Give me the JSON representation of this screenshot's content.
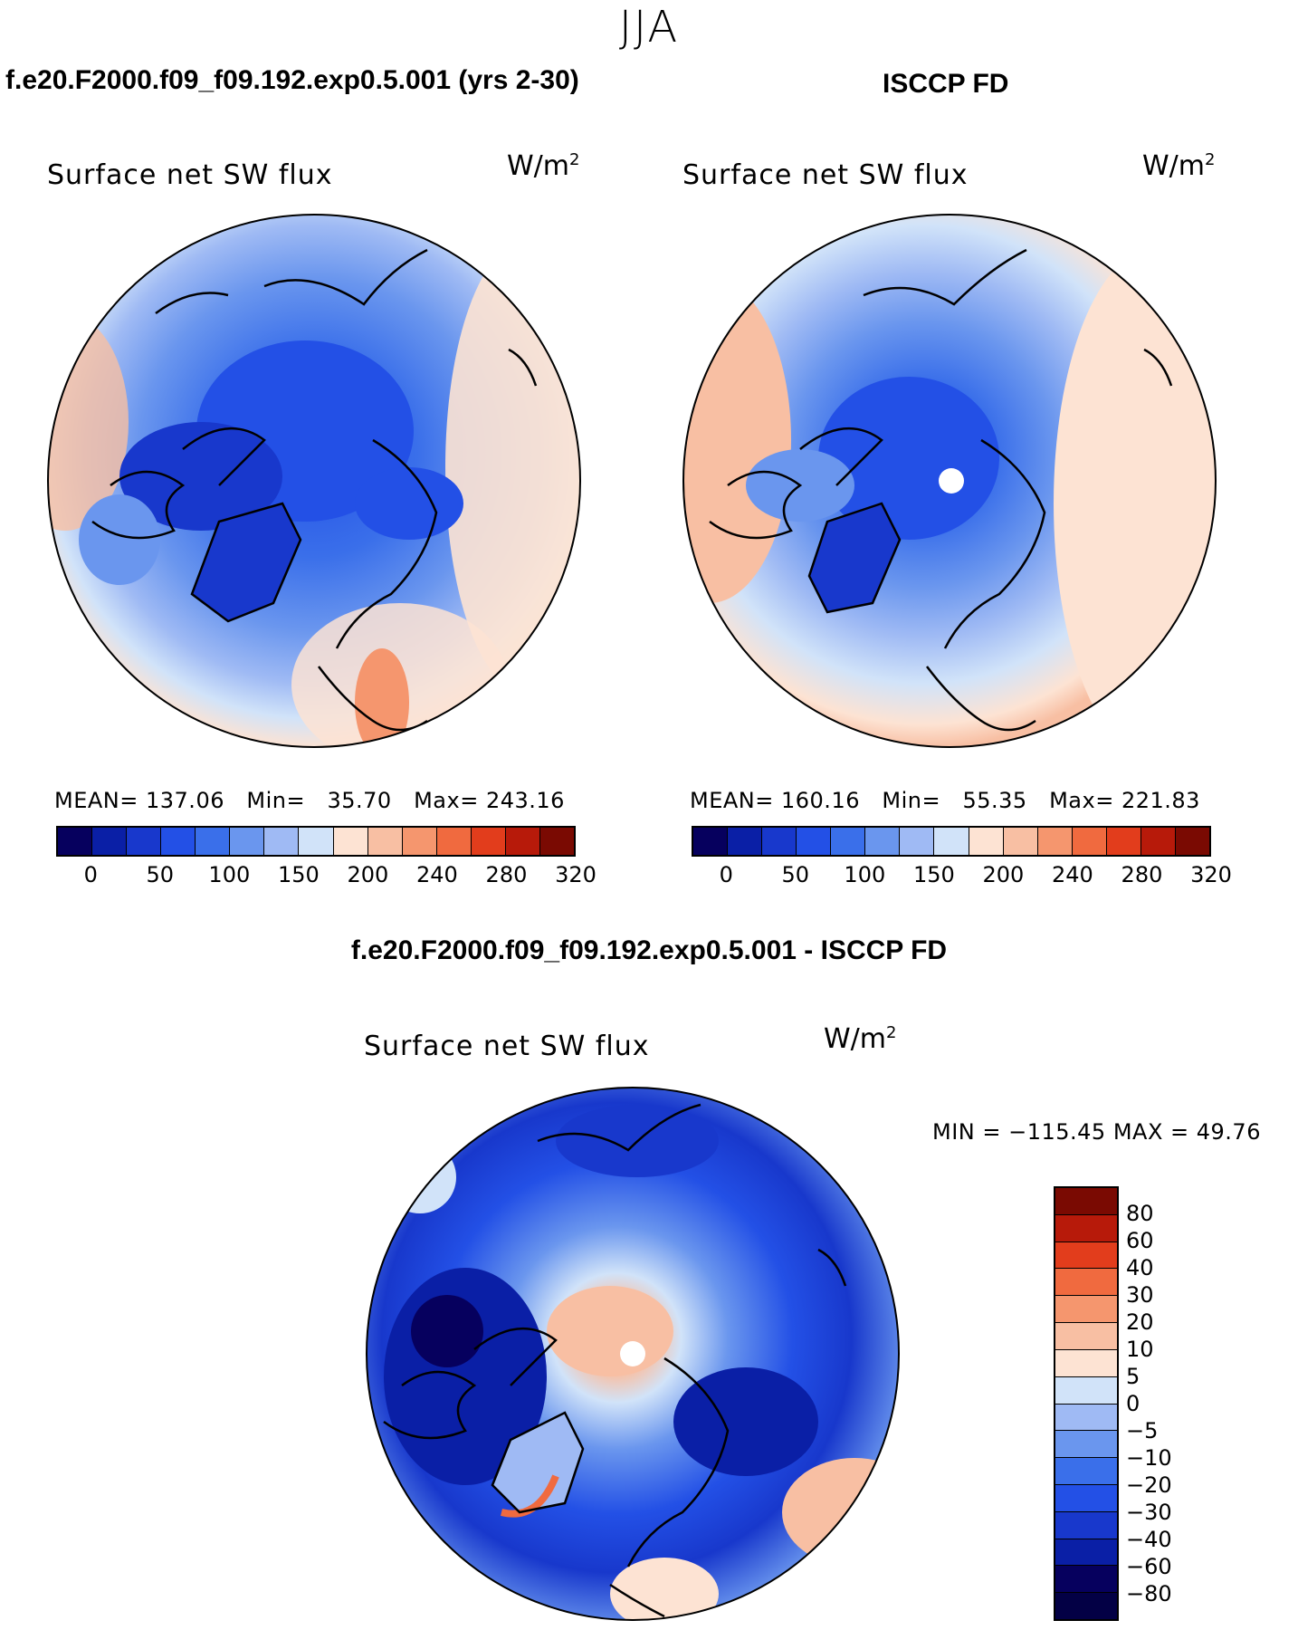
{
  "season": "JJA",
  "panels": [
    {
      "case_title": "f.e20.F2000.f09_f09.192.exp0.5.001 (yrs 2-30)",
      "field": "Surface net SW flux",
      "unit": "W/m",
      "unit_exp": "2",
      "mean_label": "MEAN=",
      "mean": "137.06",
      "min_label": "Min=",
      "min": "35.70",
      "max_label": "Max=",
      "max": "243.16"
    },
    {
      "case_title": "ISCCP FD",
      "field": "Surface net SW flux",
      "unit": "W/m",
      "unit_exp": "2",
      "mean_label": "MEAN=",
      "mean": "160.16",
      "min_label": "Min=",
      "min": "55.35",
      "max_label": "Max=",
      "max": "221.83"
    },
    {
      "case_title": "f.e20.F2000.f09_f09.192.exp0.5.001 - ISCCP FD",
      "field": "Surface net SW flux",
      "unit": "W/m",
      "unit_exp": "2",
      "minmax_text": "MIN = −115.45  MAX =    49.76"
    }
  ],
  "abs_colorbar": {
    "colors": [
      "#06005e",
      "#0a1fa6",
      "#1838cc",
      "#2350e6",
      "#3a6fea",
      "#6a96ee",
      "#9fbaf4",
      "#d1e3f9",
      "#fde3d3",
      "#f8bfa3",
      "#f5966e",
      "#f06a3f",
      "#e23d1c",
      "#b71a0a",
      "#7a0a02"
    ],
    "ticks": [
      "0",
      "50",
      "100",
      "150",
      "200",
      "240",
      "280",
      "320"
    ]
  },
  "diff_colorbar": {
    "colors": [
      "#7a0a02",
      "#b71a0a",
      "#e23d1c",
      "#f06a3f",
      "#f5966e",
      "#f8bfa3",
      "#fde3d3",
      "#d1e3f9",
      "#9fbaf4",
      "#6a96ee",
      "#3a6fea",
      "#2350e6",
      "#1838cc",
      "#0a1fa6",
      "#06005e",
      "#030045"
    ],
    "ticks": [
      "80",
      "60",
      "40",
      "30",
      "20",
      "10",
      "5",
      "0",
      "−5",
      "−10",
      "−20",
      "−30",
      "−40",
      "−60",
      "−80"
    ]
  }
}
